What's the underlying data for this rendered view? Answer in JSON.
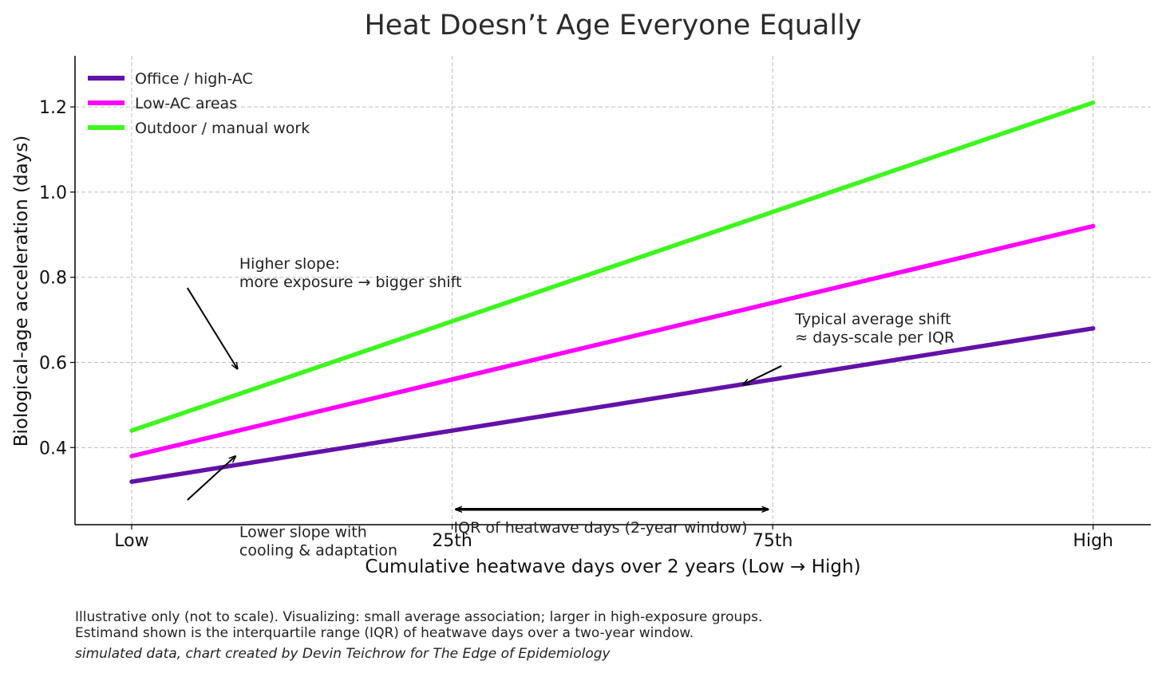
{
  "chart_data": {
    "type": "line",
    "title": "Heat Doesn’t Age Everyone Equally",
    "xlabel": "Cumulative heatwave days over 2 years (Low → High)",
    "ylabel": "Biological-age acceleration (days)",
    "x": [
      0,
      1
    ],
    "xtick_labels": [
      {
        "x": 0.0,
        "label": "Low"
      },
      {
        "x": 0.3333,
        "label": "25th"
      },
      {
        "x": 0.6667,
        "label": "75th"
      },
      {
        "x": 1.0,
        "label": "High"
      }
    ],
    "yticks": [
      0.4,
      0.6,
      0.8,
      1.0,
      1.2
    ],
    "xlim": [
      -0.0589,
      1.06
    ],
    "ylim": [
      0.219,
      1.32
    ],
    "grid": true,
    "legend_position": "top-left",
    "series": [
      {
        "name": "Office / high-AC",
        "x": [
          0,
          1
        ],
        "y": [
          0.32,
          0.68
        ],
        "color": "#6312a8"
      },
      {
        "name": "Low-AC areas",
        "x": [
          0,
          1
        ],
        "y": [
          0.38,
          0.92
        ],
        "color": "#ff00ff"
      },
      {
        "name": "Outdoor / manual work",
        "x": [
          0,
          1
        ],
        "y": [
          0.44,
          1.21
        ],
        "color": "#3ef51f"
      }
    ],
    "annotations": [
      {
        "id": "higher-slope",
        "lines": [
          "Higher slope:",
          "more exposure → bigger shift"
        ],
        "text_at": [
          0.112,
          0.82
        ],
        "arrow_from": [
          0.058,
          0.775
        ],
        "arrow_to": [
          0.11,
          0.585
        ]
      },
      {
        "id": "typical-shift",
        "lines": [
          "Typical average shift",
          "≈ days-scale per IQR"
        ],
        "text_at": [
          0.69,
          0.69
        ],
        "arrow_from": [
          0.676,
          0.592
        ],
        "arrow_to": [
          0.636,
          0.548
        ]
      },
      {
        "id": "lower-slope",
        "lines": [
          "Lower slope with",
          "cooling & adaptation"
        ],
        "text_at": [
          0.112,
          0.19
        ],
        "arrow_from": [
          0.058,
          0.277
        ],
        "arrow_to": [
          0.108,
          0.38
        ]
      },
      {
        "id": "iqr",
        "lines": [
          "IQR of heatwave days (2-year window)"
        ],
        "text_at": [
          0.335,
          0.2
        ],
        "arrow_from": [
          0.337,
          0.255
        ],
        "arrow_to": [
          0.662,
          0.255
        ],
        "double_headed": true
      }
    ]
  },
  "footnotes": {
    "line1": "Illustrative only (not to scale). Visualizing: small average association; larger in high-exposure groups.",
    "line2": "Estimand shown is the interquartile range (IQR) of heatwave days over a two-year window.",
    "credit": "simulated data, chart created by Devin Teichrow for The Edge of Epidemiology"
  }
}
